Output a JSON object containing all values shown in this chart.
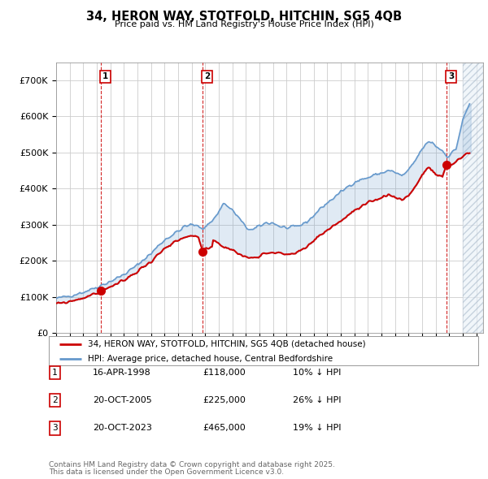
{
  "title": "34, HERON WAY, STOTFOLD, HITCHIN, SG5 4QB",
  "subtitle": "Price paid vs. HM Land Registry's House Price Index (HPI)",
  "red_label": "34, HERON WAY, STOTFOLD, HITCHIN, SG5 4QB (detached house)",
  "blue_label": "HPI: Average price, detached house, Central Bedfordshire",
  "transactions": [
    {
      "num": 1,
      "date": "16-APR-1998",
      "price": 118000,
      "pct": "10% ↓ HPI",
      "year": 1998.29
    },
    {
      "num": 2,
      "date": "20-OCT-2005",
      "price": 225000,
      "pct": "26% ↓ HPI",
      "year": 2005.8
    },
    {
      "num": 3,
      "date": "20-OCT-2023",
      "price": 465000,
      "pct": "19% ↓ HPI",
      "year": 2023.8
    }
  ],
  "footer1": "Contains HM Land Registry data © Crown copyright and database right 2025.",
  "footer2": "This data is licensed under the Open Government Licence v3.0.",
  "xmin": 1995.0,
  "xmax": 2026.5,
  "ymin": 0,
  "ymax": 750000,
  "yticks": [
    0,
    100000,
    200000,
    300000,
    400000,
    500000,
    600000,
    700000
  ],
  "ytick_labels": [
    "£0",
    "£100K",
    "£200K",
    "£300K",
    "£400K",
    "£500K",
    "£600K",
    "£700K"
  ],
  "hpi_color": "#6699cc",
  "price_color": "#cc0000",
  "vline_color": "#cc0000",
  "grid_color": "#cccccc",
  "background_color": "#ffffff",
  "hatch_start": 2025.0,
  "hatch_color": "#d0e0f0"
}
